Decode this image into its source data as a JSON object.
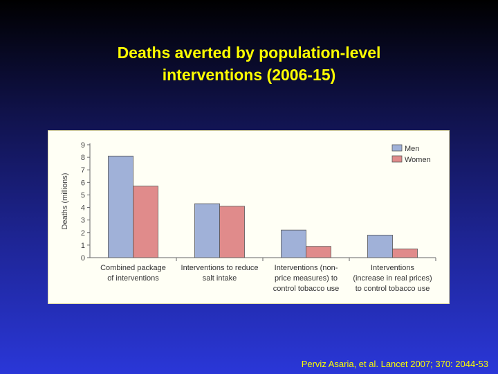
{
  "slide": {
    "title_line1": "Deaths averted by population-level",
    "title_line2": "interventions (2006-15)",
    "citation": "Perviz Asaria, et al. Lancet 2007; 370: 2044-53"
  },
  "colors": {
    "title": "#ffff00",
    "men": "#a0b1d8",
    "women": "#e08b8b",
    "panel_background": "#fffff5"
  },
  "chart_data": {
    "type": "bar",
    "ylabel": "Deaths (millions)",
    "ylim": [
      0,
      9
    ],
    "yticks": [
      0,
      1,
      2,
      3,
      4,
      5,
      6,
      7,
      8,
      9
    ],
    "legend_position": "top-right",
    "categories": [
      [
        "Combined package",
        "of interventions"
      ],
      [
        "Interventions to reduce",
        "salt intake"
      ],
      [
        "Interventions (non-",
        "price measures) to",
        "control tobacco use"
      ],
      [
        "Interventions",
        "(increase in real prices)",
        "to control tobacco use"
      ]
    ],
    "series": [
      {
        "name": "Men",
        "color": "#a0b1d8",
        "values": [
          8.1,
          4.3,
          2.2,
          1.8
        ]
      },
      {
        "name": "Women",
        "color": "#e08b8b",
        "values": [
          5.7,
          4.1,
          0.9,
          0.7
        ]
      }
    ]
  }
}
